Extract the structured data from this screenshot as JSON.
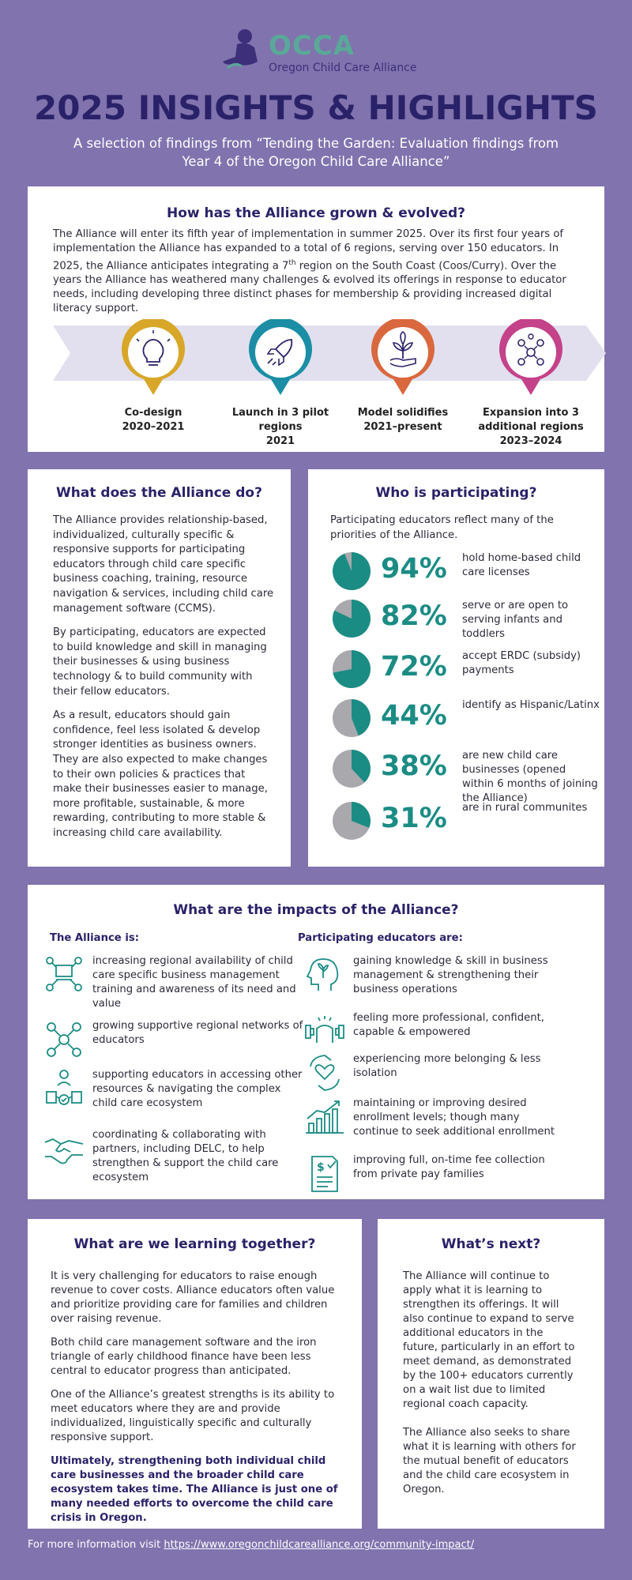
{
  "logo": {
    "text": "OCCA",
    "subtext": "Oregon Child Care Alliance",
    "colors": {
      "primary": "#5aa898",
      "secondary": "#3d2f7a"
    }
  },
  "header": {
    "title": "2025 INSIGHTS & HIGHLIGHTS",
    "subtitle": "A selection of findings from “Tending the Garden: Evaluation findings from Year 4 of the Oregon Child Care Alliance”"
  },
  "grown": {
    "title": "How has the Alliance grown & evolved?",
    "intro_1": "The Alliance will enter its fifth year of implementation in summer 2025. Over its first four years of implementation the Alliance has expanded to a total of 6 regions, serving over 150 educators. In 2025, the Alliance anticipates integrating a 7",
    "intro_sup": "th",
    "intro_2": " region on the South Coast (Coos/Curry). Over the years the Alliance has weathered many challenges & evolved its offerings in response to educator needs, including developing three distinct phases for membership & providing increased digital literacy support.",
    "milestones": [
      {
        "line1": "Co-design",
        "line2": "2020–2021",
        "line3": "",
        "icon": "lightbulb-icon",
        "color": "#d8a72a"
      },
      {
        "line1": "Launch in 3 pilot",
        "line2": "regions",
        "line3": "2021",
        "icon": "rocket-icon",
        "color": "#1b8ea6"
      },
      {
        "line1": "Model solidifies",
        "line2": "2021–present",
        "line3": "",
        "icon": "plant-icon",
        "color": "#d9683f"
      },
      {
        "line1": "Expansion into 3",
        "line2": "additional regions",
        "line3": "2023–2024",
        "icon": "network-icon",
        "color": "#c4428a"
      }
    ]
  },
  "does": {
    "title": "What does the Alliance do?",
    "paragraphs": [
      "The Alliance provides relationship-based, individualized, culturally specific & responsive supports for participating educators through child care specific business coaching, training, resource navigation & services, including child care management software (CCMS).",
      "By participating, educators are expected to build knowledge and skill in managing their businesses & using business technology & to build community with their fellow educators.",
      "As a result, educators should gain confidence, feel less isolated & develop stronger identities as business owners. They are also expected to make changes to their own policies & practices that make their businesses easier to manage, more profitable, sustainable, & more rewarding, contributing to more stable & increasing child care availability."
    ]
  },
  "who": {
    "title": "Who is participating?",
    "intro": "Participating educators reflect many of the priorities of the Alliance.",
    "stats": [
      {
        "pct": "94%",
        "value": 0.94,
        "desc": "hold home-based child care licenses"
      },
      {
        "pct": "82%",
        "value": 0.82,
        "desc": "serve or are open to serving infants and toddlers"
      },
      {
        "pct": "72%",
        "value": 0.72,
        "desc": "accept ERDC (subsidy) payments"
      },
      {
        "pct": "44%",
        "value": 0.44,
        "desc": "identify as Hispanic/Latinx"
      },
      {
        "pct": "38%",
        "value": 0.38,
        "desc": "are new child care businesses (opened within 6 months of joining the Alliance)"
      },
      {
        "pct": "31%",
        "value": 0.31,
        "desc": "are in rural communites"
      }
    ],
    "colors": {
      "fill": "#1b8c84",
      "rest": "#a8a8ad"
    }
  },
  "impacts": {
    "title": "What are the impacts of the Alliance?",
    "left_head": "The Alliance is:",
    "right_head": "Participating educators are:",
    "left": [
      {
        "text": "increasing regional availability of child care specific business management training and awareness of its need and value",
        "icon": "training-network-icon"
      },
      {
        "text": "growing supportive regional networks of educators",
        "icon": "people-network-icon"
      },
      {
        "text": "supporting educators in accessing other resources & navigating the complex child care ecosystem",
        "icon": "navigation-icon"
      },
      {
        "text": "coordinating & collaborating with partners, including DELC, to help strengthen & support the child care ecosystem",
        "icon": "handshake-icon"
      }
    ],
    "right": [
      {
        "text": "gaining knowledge & skill in business management & strengthening their business operations",
        "icon": "head-growth-icon"
      },
      {
        "text": "feeling more professional, confident, capable & empowered",
        "icon": "strength-icon"
      },
      {
        "text": "experiencing more belonging & less isolation",
        "icon": "heart-hands-icon"
      },
      {
        "text": "maintaining or improving desired enrollment levels; though many continue to seek additional enrollment",
        "icon": "growth-chart-icon"
      },
      {
        "text": "improving full, on-time fee collection from private pay families",
        "icon": "invoice-icon"
      }
    ]
  },
  "learning": {
    "title": "What are we learning together?",
    "paragraphs": [
      "It is very challenging for educators to raise enough revenue to cover costs. Alliance educators often value and prioritize providing care for families and children over raising revenue.",
      "Both child care management software and the iron triangle of early childhood finance have been less central to educator progress than anticipated.",
      "One of the Alliance’s greatest strengths is its ability to meet educators where they are and provide individualized, linguistically specific and culturally responsive support."
    ],
    "bold": "Ultimately, strengthening both individual child care businesses and the broader child care ecosystem takes time. The Alliance is just one of many needed efforts to overcome the child care crisis in Oregon."
  },
  "next": {
    "title": "What’s next?",
    "paragraphs": [
      "The Alliance will continue to apply what it is learning to strengthen its offerings. It will also continue to expand to serve additional educators in the future, particularly in an effort to meet demand, as demonstrated by the 100+ educators currently on a wait list due to limited regional coach capacity.",
      "The Alliance also seeks to share what it is learning with others for the mutual benefit of educators and the child care ecosystem in Oregon."
    ]
  },
  "footer": {
    "text": "For more information visit ",
    "link": "https://www.oregonchildcarealliance.org/community-impact/"
  }
}
